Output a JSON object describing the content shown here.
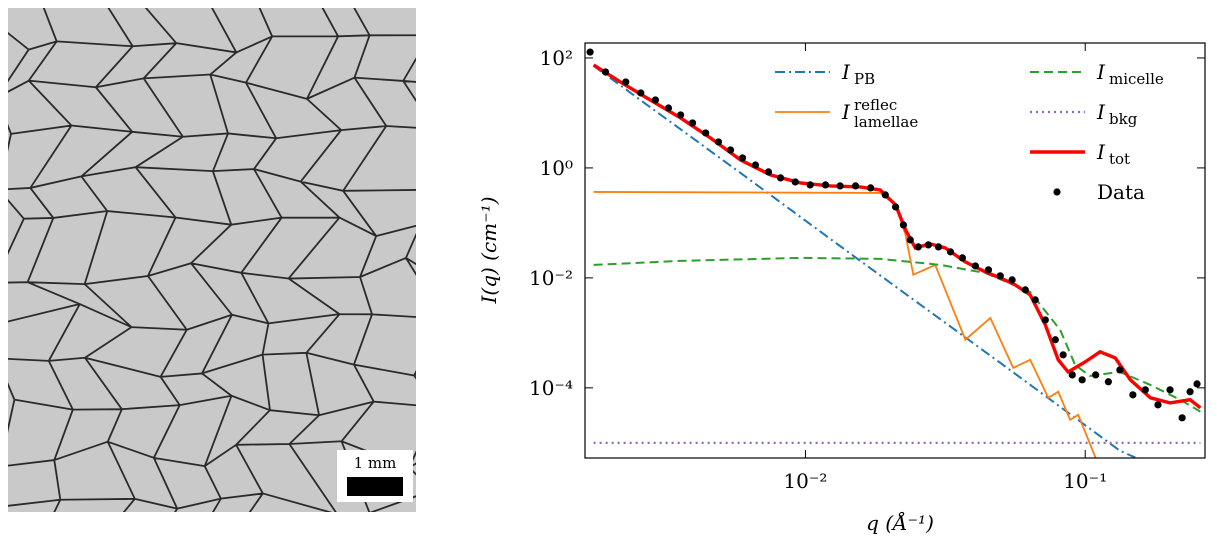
{
  "image": {
    "scale_bar": "1 mm"
  },
  "chart_data": {
    "type": "line",
    "xlabel": "q (Å⁻¹)",
    "ylabel": "I(q) (cm⁻¹)",
    "xscale": "log",
    "yscale": "log",
    "xlim": [
      0.00163,
      0.268
    ],
    "ylim": [
      5.3e-06,
      187
    ],
    "xticks": [
      {
        "value": 0.01,
        "label": "10⁻²"
      },
      {
        "value": 0.1,
        "label": "10⁻¹"
      }
    ],
    "yticks": [
      {
        "value": 100,
        "label": "10²"
      },
      {
        "value": 1,
        "label": "10⁰"
      },
      {
        "value": 0.01,
        "label": "10⁻²"
      },
      {
        "value": 0.0001,
        "label": "10⁻⁴"
      }
    ],
    "legend": "upper right",
    "series": [
      {
        "name": "I",
        "subscript": "PB",
        "color": "#1f77b4",
        "style": "dash-dot",
        "x": [
          0.00175,
          0.00586,
          0.0157,
          0.0497,
          0.133,
          0.151
        ],
        "values": [
          71.6,
          0.81,
          0.0204,
          0.000285,
          7.2e-06,
          5.4e-06
        ]
      },
      {
        "name": "I",
        "superscript": "reflec",
        "subscript": "lamellae",
        "color": "#ff7f0e",
        "style": "solid",
        "x": [
          0.00175,
          0.0185,
          0.021,
          0.0228,
          0.0243,
          0.0291,
          0.0373,
          0.0458,
          0.0553,
          0.0636,
          0.0738,
          0.0801,
          0.0883,
          0.0944,
          0.109
        ],
        "values": [
          0.366,
          0.351,
          0.212,
          0.0605,
          0.0114,
          0.0172,
          0.00075,
          0.00187,
          0.000231,
          0.000323,
          6.6e-05,
          8.5e-05,
          2.62e-05,
          3.23e-05,
          5.3e-06
        ]
      },
      {
        "name": "I",
        "subscript": "micelle",
        "color": "#2ca02c",
        "style": "dashed",
        "x": [
          0.00175,
          0.00358,
          0.0096,
          0.0185,
          0.0304,
          0.0439,
          0.0636,
          0.0814,
          0.0921,
          0.104,
          0.133,
          0.171,
          0.218,
          0.258
        ],
        "values": [
          0.0172,
          0.0204,
          0.0231,
          0.0222,
          0.0172,
          0.0123,
          0.00556,
          0.00113,
          0.00026,
          0.000165,
          0.000195,
          0.000113,
          6.1e-05,
          3.7e-05
        ]
      },
      {
        "name": "I",
        "subscript": "bkg",
        "color": "#9467bd",
        "style": "dotted",
        "x": [
          0.00175,
          0.258
        ],
        "values": [
          1e-05,
          1e-05
        ]
      },
      {
        "name": "I",
        "subscript": "tot",
        "color": "#ff0000",
        "style": "thick",
        "x": [
          0.00175,
          0.00218,
          0.00279,
          0.00358,
          0.00458,
          0.00586,
          0.0075,
          0.0096,
          0.0123,
          0.0157,
          0.0185,
          0.021,
          0.0228,
          0.0247,
          0.0279,
          0.0316,
          0.0373,
          0.0439,
          0.0497,
          0.0562,
          0.0636,
          0.072,
          0.0801,
          0.0869,
          0.1,
          0.113,
          0.128,
          0.145,
          0.171,
          0.201,
          0.237,
          0.258
        ],
        "values": [
          74.6,
          36.6,
          17.2,
          8.1,
          3.5,
          1.4,
          0.746,
          0.534,
          0.471,
          0.451,
          0.398,
          0.212,
          0.0746,
          0.0351,
          0.0415,
          0.0351,
          0.0195,
          0.0129,
          0.01,
          0.00746,
          0.00491,
          0.0014,
          0.000323,
          0.000195,
          0.000297,
          0.000452,
          0.000351,
          0.00014,
          6.6e-05,
          5.33e-05,
          6.1e-05,
          4.33e-05
        ]
      },
      {
        "name": "Data",
        "color": "#000000",
        "style": "markers",
        "x": [
          0.0017,
          0.00193,
          0.00228,
          0.00258,
          0.00291,
          0.00324,
          0.00358,
          0.00395,
          0.0044,
          0.00489,
          0.0054,
          0.00596,
          0.00663,
          0.00738,
          0.00815,
          0.0092,
          0.0104,
          0.0118,
          0.0133,
          0.0151,
          0.0171,
          0.0193,
          0.021,
          0.0224,
          0.0237,
          0.0253,
          0.0275,
          0.0299,
          0.033,
          0.0364,
          0.0405,
          0.0451,
          0.0497,
          0.0548,
          0.0611,
          0.0663,
          0.072,
          0.0782,
          0.0834,
          0.0899,
          0.0975,
          0.109,
          0.121,
          0.133,
          0.148,
          0.164,
          0.182,
          0.201,
          0.222,
          0.237,
          0.251
        ],
        "values": [
          128,
          55.6,
          36.6,
          23.1,
          17.2,
          12.3,
          9.2,
          6.58,
          4.33,
          2.97,
          2.12,
          1.52,
          1.13,
          0.846,
          0.658,
          0.556,
          0.491,
          0.491,
          0.471,
          0.471,
          0.433,
          0.323,
          0.195,
          0.092,
          0.0491,
          0.0366,
          0.0398,
          0.0366,
          0.0297,
          0.0231,
          0.0165,
          0.014,
          0.0109,
          0.0092,
          0.00605,
          0.00398,
          0.00172,
          0.00075,
          0.000398,
          0.000172,
          0.00014,
          0.000172,
          0.000129,
          0.000212,
          7.46e-05,
          9.2e-05,
          4.91e-05,
          9.2e-05,
          2.85e-05,
          8.5e-05,
          0.000118
        ]
      }
    ]
  }
}
